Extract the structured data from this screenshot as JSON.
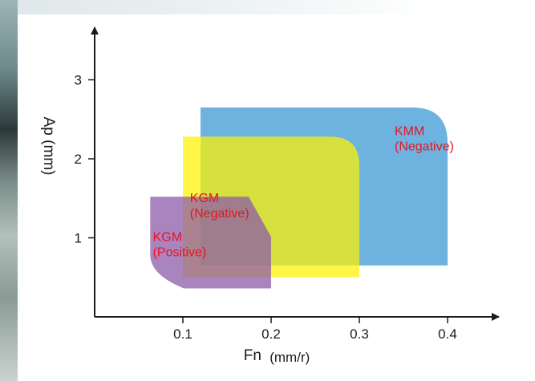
{
  "chart_data": {
    "type": "area",
    "title": "",
    "xlabel": "Fn",
    "xlabel_unit": "(mm/r)",
    "ylabel": "Ap (mm)",
    "xlim": [
      0,
      0.4
    ],
    "ylim": [
      0,
      3.3
    ],
    "x_ticks": [
      "0.1",
      "0.2",
      "0.3",
      "0.4"
    ],
    "x_tick_values": [
      0.1,
      0.2,
      0.3,
      0.4
    ],
    "y_ticks": [
      "1",
      "2",
      "3"
    ],
    "y_tick_values": [
      1,
      2,
      3
    ],
    "grid": false,
    "label_color": "#e8141e",
    "regions": [
      {
        "name": "KMM (Negative)",
        "label_lines": [
          "KMM",
          "(Negative)"
        ],
        "color": "#3d9ad6",
        "opacity": 0.75,
        "x_range": [
          0.12,
          0.4
        ],
        "y_range": [
          0.65,
          2.65
        ],
        "label_at": [
          0.34,
          2.3
        ]
      },
      {
        "name": "KGM (Negative)",
        "label_lines": [
          "KGM",
          "(Negative)"
        ],
        "color": "#fff200",
        "opacity": 0.72,
        "x_range": [
          0.1,
          0.3
        ],
        "y_range": [
          0.5,
          2.28
        ],
        "label_at": [
          0.108,
          1.45
        ]
      },
      {
        "name": "KGM (Positive)",
        "label_lines": [
          "KGM",
          "(Positive)"
        ],
        "color": "#8e5ba8",
        "opacity": 0.75,
        "x_range": [
          0.063,
          0.2
        ],
        "y_range": [
          0.36,
          1.52
        ],
        "label_at": [
          0.066,
          0.96
        ]
      }
    ]
  }
}
